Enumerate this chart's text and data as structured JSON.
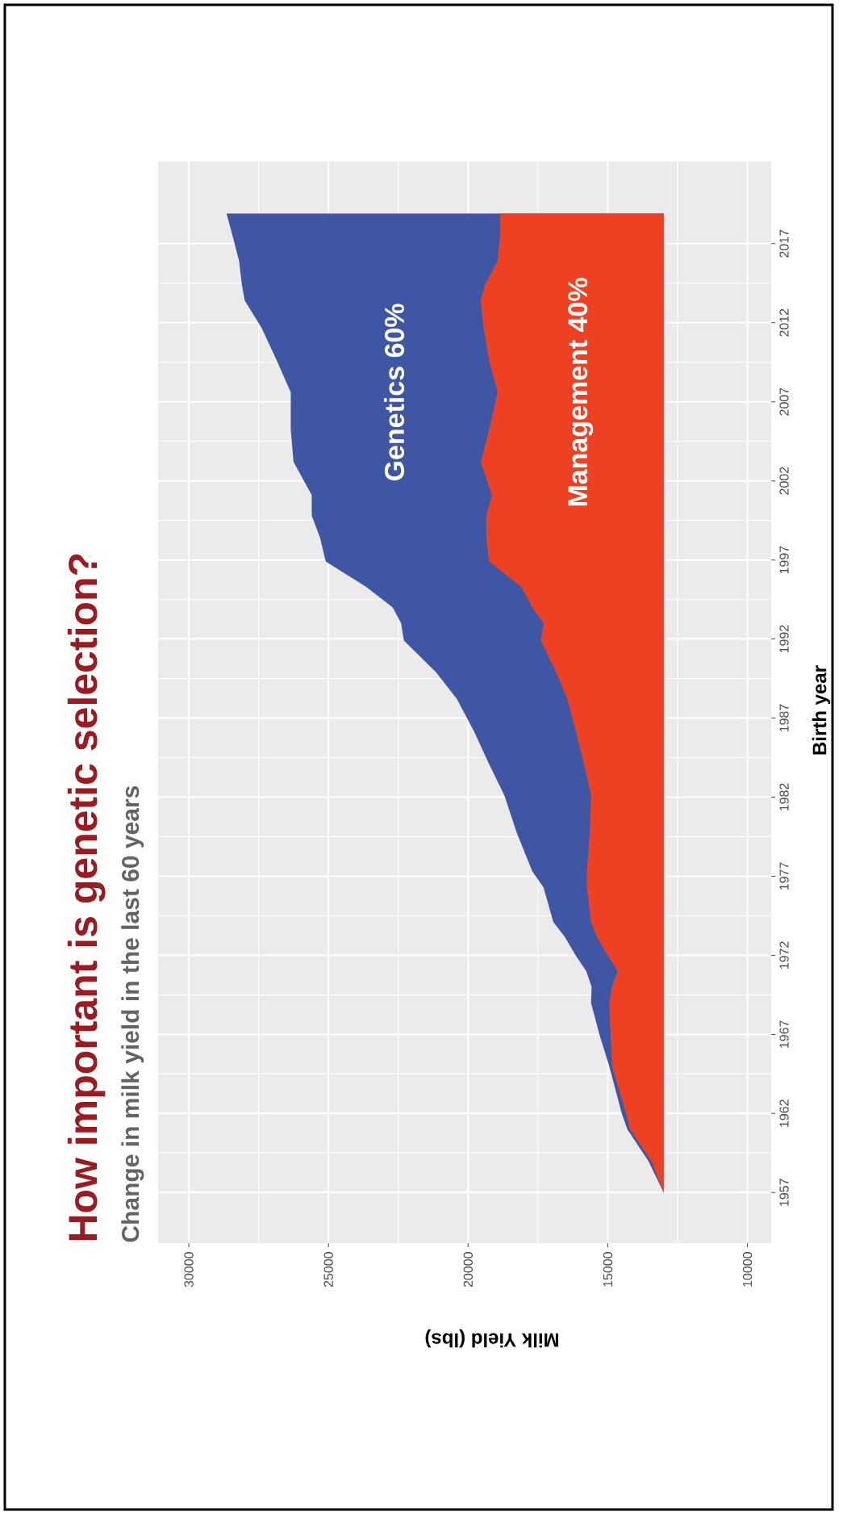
{
  "chart_data": {
    "type": "area",
    "orientation": "horizontal",
    "title": "How important is genetic selection?",
    "subtitle": "Change in milk yield in the last 60 years",
    "xlabel": "Milk Yield (lbs)",
    "ylabel": "Birth year",
    "x": [
      1957,
      1959,
      1961,
      1962,
      1965,
      1967,
      1969,
      1970,
      1971,
      1972,
      1973.2,
      1974.1,
      1976.3,
      1977.3,
      1979.7,
      1982.1,
      1984.1,
      1986.2,
      1988.2,
      1989.9,
      1991.9,
      1993,
      1994,
      1995.3,
      1996.9,
      1998.4,
      1999.8,
      2001.1,
      2003.2,
      2005.2,
      2007.6,
      2009.6,
      2011.7,
      2013.4,
      2014.4,
      2015.9,
      2017.6,
      2018.9
    ],
    "series": [
      {
        "name": "Genetics 60%",
        "color": "#3f56a4",
        "values": [
          13000,
          13550,
          14300,
          14500,
          14950,
          15300,
          15600,
          15580,
          15770,
          16150,
          16550,
          16950,
          17300,
          17700,
          18250,
          18700,
          19250,
          19800,
          20400,
          21150,
          22300,
          22400,
          22700,
          23650,
          25100,
          25300,
          25600,
          25600,
          26250,
          26350,
          26350,
          26850,
          27400,
          28000,
          28100,
          28200,
          28450,
          28650
        ]
      },
      {
        "name": "Management 40%",
        "color": "#ee4023",
        "values": [
          13000,
          13450,
          14200,
          14350,
          14850,
          14900,
          14950,
          14850,
          14650,
          15000,
          15400,
          15600,
          15750,
          15750,
          15650,
          15600,
          15850,
          16150,
          16450,
          16850,
          17400,
          17300,
          17700,
          18100,
          19250,
          19350,
          19350,
          19150,
          19550,
          19250,
          18950,
          19250,
          19450,
          19550,
          19400,
          18950,
          18850,
          18850
        ]
      }
    ],
    "xlim": [
      31100,
      9150
    ],
    "ylim": [
      1953.8,
      2022.2
    ],
    "xticks": [
      30000,
      25000,
      20000,
      15000,
      10000
    ],
    "yticks": [
      1957,
      1962,
      1967,
      1972,
      1977,
      1982,
      1987,
      1992,
      1997,
      2002,
      2007,
      2012,
      2017
    ],
    "grid": true
  }
}
